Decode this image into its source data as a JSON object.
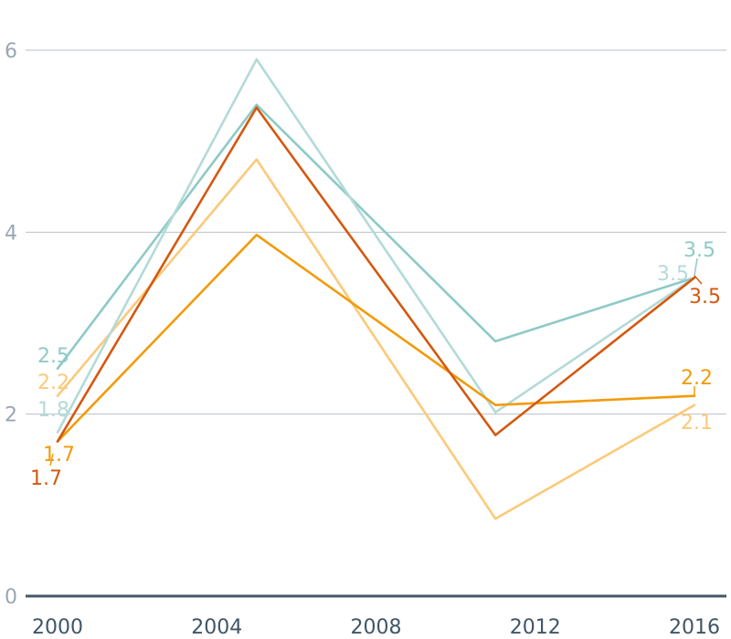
{
  "chart_data": {
    "type": "line",
    "title": "",
    "xlabel": "",
    "ylabel": "",
    "xlim": [
      2000,
      2016.5
    ],
    "ylim": [
      0,
      6
    ],
    "x_ticks": [
      "2000",
      "2004",
      "2008",
      "2012",
      "2016"
    ],
    "y_ticks": [
      "0",
      "2",
      "4",
      "6"
    ],
    "grid": "horizontal",
    "legend": "none",
    "x": [
      2000,
      2005,
      2011,
      2016
    ],
    "series": [
      {
        "color": "#8ecac6",
        "values": [
          2.5,
          5.4,
          2.8,
          3.5
        ],
        "start_label": "2.5",
        "end_label": "3.5"
      },
      {
        "color": "#fcc97a",
        "values": [
          2.2,
          4.8,
          0.85,
          2.1
        ],
        "start_label": "2.2",
        "end_label": "2.1"
      },
      {
        "color": "#b3dad8",
        "values": [
          1.8,
          5.9,
          2.02,
          3.5
        ],
        "start_label": "1.8",
        "end_label": "3.5"
      },
      {
        "color": "#f29b0a",
        "values": [
          1.7,
          3.97,
          2.1,
          2.2
        ],
        "start_label": "1.7",
        "end_label": "2.2"
      },
      {
        "color": "#d4580f",
        "values": [
          1.7,
          5.37,
          1.77,
          3.5
        ],
        "start_label": "1.7",
        "end_label": "3.5"
      }
    ]
  }
}
